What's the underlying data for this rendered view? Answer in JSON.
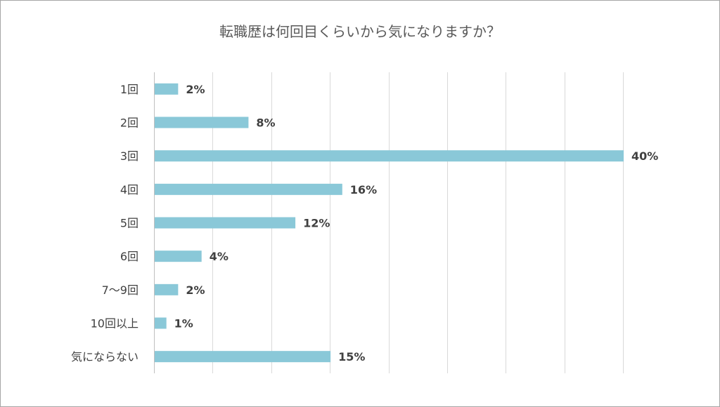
{
  "chart_data": {
    "type": "bar",
    "orientation": "horizontal",
    "title": "転職歴は何回目くらいから気になりますか？",
    "categories": [
      "1回",
      "2回",
      "3回",
      "4回",
      "5回",
      "6回",
      "7〜9回",
      "10回以上",
      "気にならない"
    ],
    "values": [
      2,
      8,
      40,
      16,
      12,
      4,
      2,
      1,
      15
    ],
    "data_labels": [
      "2%",
      "8%",
      "40%",
      "16%",
      "12%",
      "4%",
      "2%",
      "1%",
      "15%"
    ],
    "unit": "%",
    "xlim": [
      0,
      40
    ],
    "xticks": [
      0,
      5,
      10,
      15,
      20,
      25,
      30,
      35,
      40
    ],
    "grid": true,
    "bar_color": "#8ac8d8",
    "legend": false
  }
}
